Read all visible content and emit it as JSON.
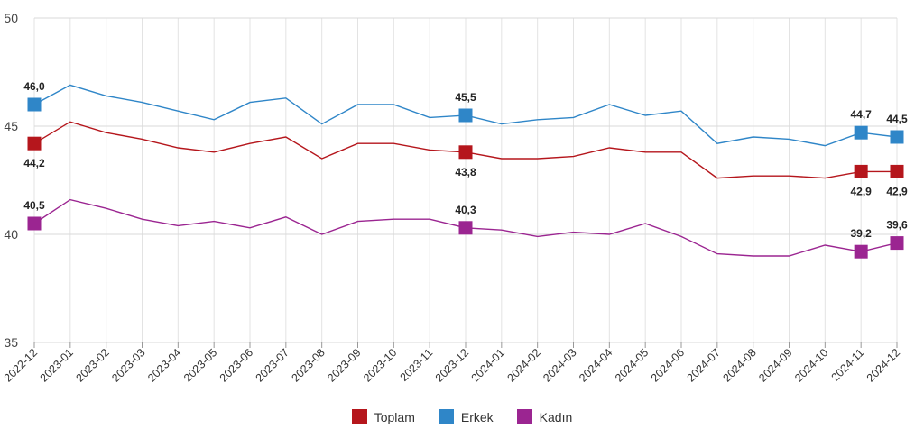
{
  "chart_data": {
    "type": "line",
    "x": [
      "2022-12",
      "2023-01",
      "2023-02",
      "2023-03",
      "2023-04",
      "2023-05",
      "2023-06",
      "2023-07",
      "2023-08",
      "2023-09",
      "2023-10",
      "2023-11",
      "2023-12",
      "2024-01",
      "2024-02",
      "2024-03",
      "2024-04",
      "2024-05",
      "2024-06",
      "2024-07",
      "2024-08",
      "2024-09",
      "2024-10",
      "2024-11",
      "2024-12"
    ],
    "ylim": [
      35,
      50
    ],
    "yticks": [
      35,
      40,
      45,
      50
    ],
    "grid": true,
    "legend_position": "bottom-center",
    "series": [
      {
        "name": "Toplam",
        "color": "#b5161c",
        "values": [
          44.2,
          45.2,
          44.7,
          44.4,
          44.0,
          43.8,
          44.2,
          44.5,
          43.5,
          44.2,
          44.2,
          43.9,
          43.8,
          43.5,
          43.5,
          43.6,
          44.0,
          43.8,
          43.8,
          42.6,
          42.7,
          42.7,
          42.6,
          42.9,
          42.9
        ],
        "markers": [
          {
            "index": 0,
            "label": "44,2",
            "pos": "below"
          },
          {
            "index": 12,
            "label": "43,8",
            "pos": "below"
          },
          {
            "index": 23,
            "label": "42,9",
            "pos": "below"
          },
          {
            "index": 24,
            "label": "42,9",
            "pos": "below"
          }
        ]
      },
      {
        "name": "Erkek",
        "color": "#2f86c8",
        "values": [
          46.0,
          46.9,
          46.4,
          46.1,
          45.7,
          45.3,
          46.1,
          46.3,
          45.1,
          46.0,
          46.0,
          45.4,
          45.5,
          45.1,
          45.3,
          45.4,
          46.0,
          45.5,
          45.7,
          44.2,
          44.5,
          44.4,
          44.1,
          44.7,
          44.5
        ],
        "markers": [
          {
            "index": 0,
            "label": "46,0",
            "pos": "above"
          },
          {
            "index": 12,
            "label": "45,5",
            "pos": "above"
          },
          {
            "index": 23,
            "label": "44,7",
            "pos": "above"
          },
          {
            "index": 24,
            "label": "44,5",
            "pos": "above"
          }
        ]
      },
      {
        "name": "Kadın",
        "color": "#9b2591",
        "values": [
          40.5,
          41.6,
          41.2,
          40.7,
          40.4,
          40.6,
          40.3,
          40.8,
          40.0,
          40.6,
          40.7,
          40.7,
          40.3,
          40.2,
          39.9,
          40.1,
          40.0,
          40.5,
          39.9,
          39.1,
          39.0,
          39.0,
          39.5,
          39.2,
          39.6
        ],
        "markers": [
          {
            "index": 0,
            "label": "40,5",
            "pos": "above"
          },
          {
            "index": 12,
            "label": "40,3",
            "pos": "above"
          },
          {
            "index": 23,
            "label": "39,2",
            "pos": "above"
          },
          {
            "index": 24,
            "label": "39,6",
            "pos": "above"
          }
        ]
      }
    ]
  }
}
